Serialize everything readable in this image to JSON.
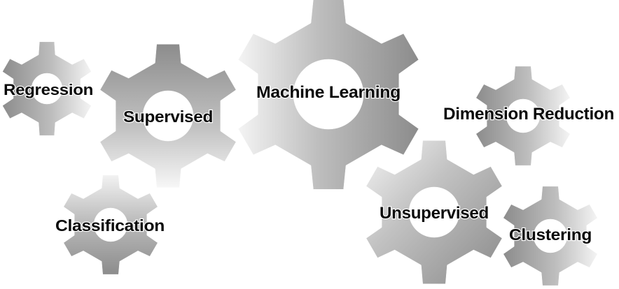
{
  "diagram": {
    "gears": [
      {
        "id": "regression",
        "label": "Regression"
      },
      {
        "id": "supervised",
        "label": "Supervised"
      },
      {
        "id": "classification",
        "label": "Classification"
      },
      {
        "id": "machine-learning",
        "label": "Machine Learning"
      },
      {
        "id": "dimension-reduction",
        "label": "Dimension Reduction"
      },
      {
        "id": "unsupervised",
        "label": "Unsupervised"
      },
      {
        "id": "clustering",
        "label": "Clustering"
      }
    ],
    "colors": {
      "gear_dark": "#8c8c8c",
      "gear_mid": "#bdbdbd",
      "gear_light": "#f4f4f4",
      "label": "#0a0a0a",
      "background": "#ffffff"
    }
  }
}
